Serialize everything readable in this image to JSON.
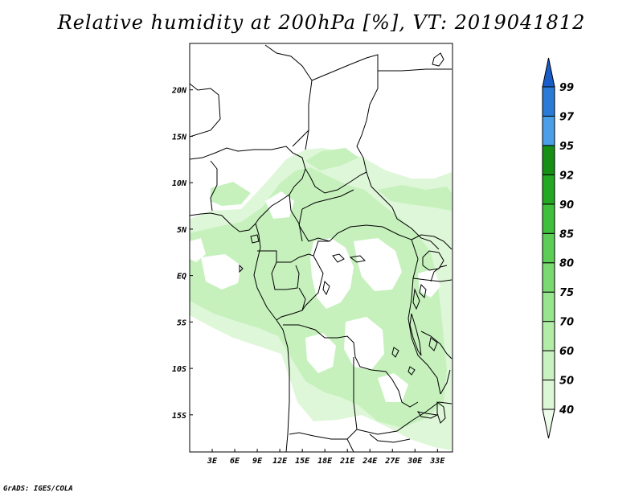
{
  "title": "Relative humidity at 200hPa [%], VT: 2019041812",
  "credit": "GrADS: IGES/COLA",
  "map": {
    "lon_range": [
      0,
      35
    ],
    "lat_range": [
      -19,
      25
    ],
    "lon_ticks": [
      "3E",
      "6E",
      "9E",
      "12E",
      "15E",
      "18E",
      "21E",
      "24E",
      "27E",
      "30E",
      "33E"
    ],
    "lat_ticks": [
      "20N",
      "15N",
      "10N",
      "5N",
      "EQ",
      "5S",
      "10S",
      "15S"
    ]
  },
  "colorbar": {
    "levels": [
      "40",
      "50",
      "60",
      "70",
      "75",
      "80",
      "85",
      "90",
      "92",
      "95",
      "97",
      "99"
    ],
    "colors": [
      "#eefbea",
      "#dcf7d6",
      "#c8f2c0",
      "#b2eda8",
      "#98e590",
      "#7ada72",
      "#5cce55",
      "#3fc03b",
      "#23a823",
      "#159015",
      "#4aa0e8",
      "#2a7ad8",
      "#1a5cc8"
    ]
  }
}
